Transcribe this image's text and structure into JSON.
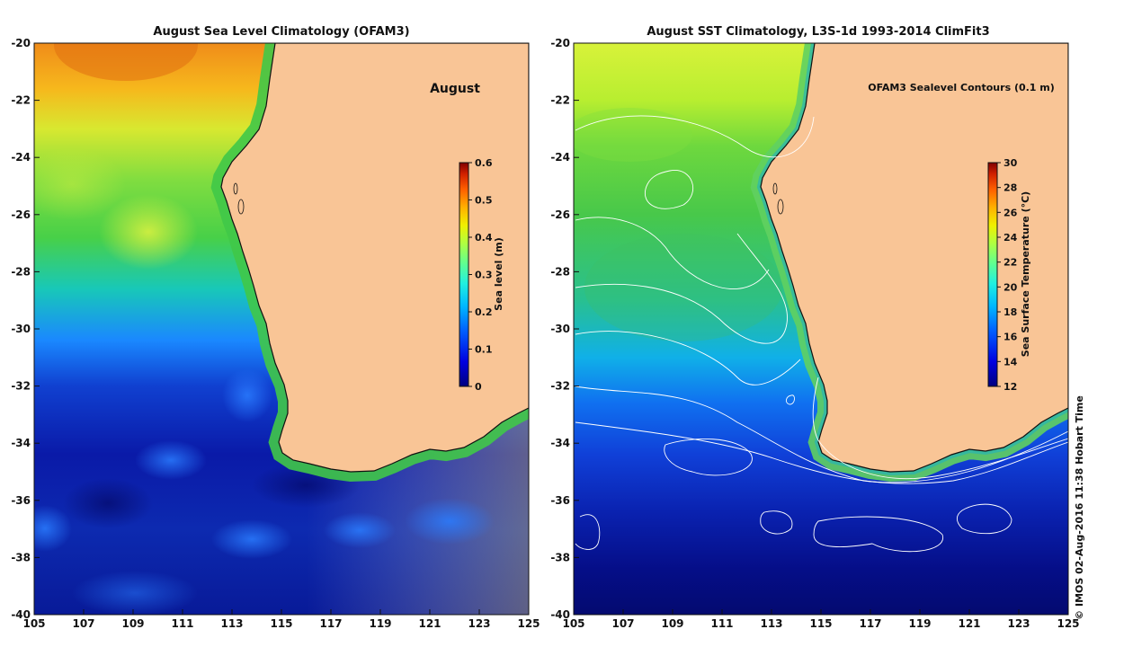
{
  "left_panel": {
    "title": "August Sea Level Climatology (OFAM3)",
    "month_label": "August",
    "colorbar": {
      "label": "Sea level (m)",
      "min": 0,
      "max": 0.6,
      "ticks": [
        "0",
        "0.1",
        "0.2",
        "0.3",
        "0.4",
        "0.5",
        "0.6"
      ]
    }
  },
  "right_panel": {
    "title": "August SST Climatology, L3S-1d 1993-2014 ClimFit3",
    "contour_label": "OFAM3 Sealevel Contours (0.1 m)",
    "colorbar": {
      "label": "Sea Surface Temperature (°C)",
      "min": 12,
      "max": 30,
      "ticks": [
        "12",
        "14",
        "16",
        "18",
        "20",
        "22",
        "24",
        "26",
        "28",
        "30"
      ]
    }
  },
  "axes": {
    "x_ticks": [
      "105",
      "107",
      "109",
      "111",
      "113",
      "115",
      "117",
      "119",
      "121",
      "123",
      "125"
    ],
    "y_ticks": [
      "-20",
      "-22",
      "-24",
      "-26",
      "-28",
      "-30",
      "-32",
      "-34",
      "-36",
      "-38",
      "-40"
    ],
    "lon_range": [
      105,
      125
    ],
    "lat_range": [
      -40,
      -20
    ]
  },
  "credit": "© IMOS 02-Aug-2016 11:38 Hobart Time",
  "colors": {
    "land": "#f9c596",
    "coast": "#111111",
    "contour": "#ffffff"
  },
  "jet_stops": [
    "#00007f",
    "#0000e0",
    "#0050ff",
    "#00b0ff",
    "#20f0e0",
    "#60ff90",
    "#a0ff50",
    "#e0ff10",
    "#ffd000",
    "#ff8000",
    "#e03000",
    "#800000"
  ]
}
